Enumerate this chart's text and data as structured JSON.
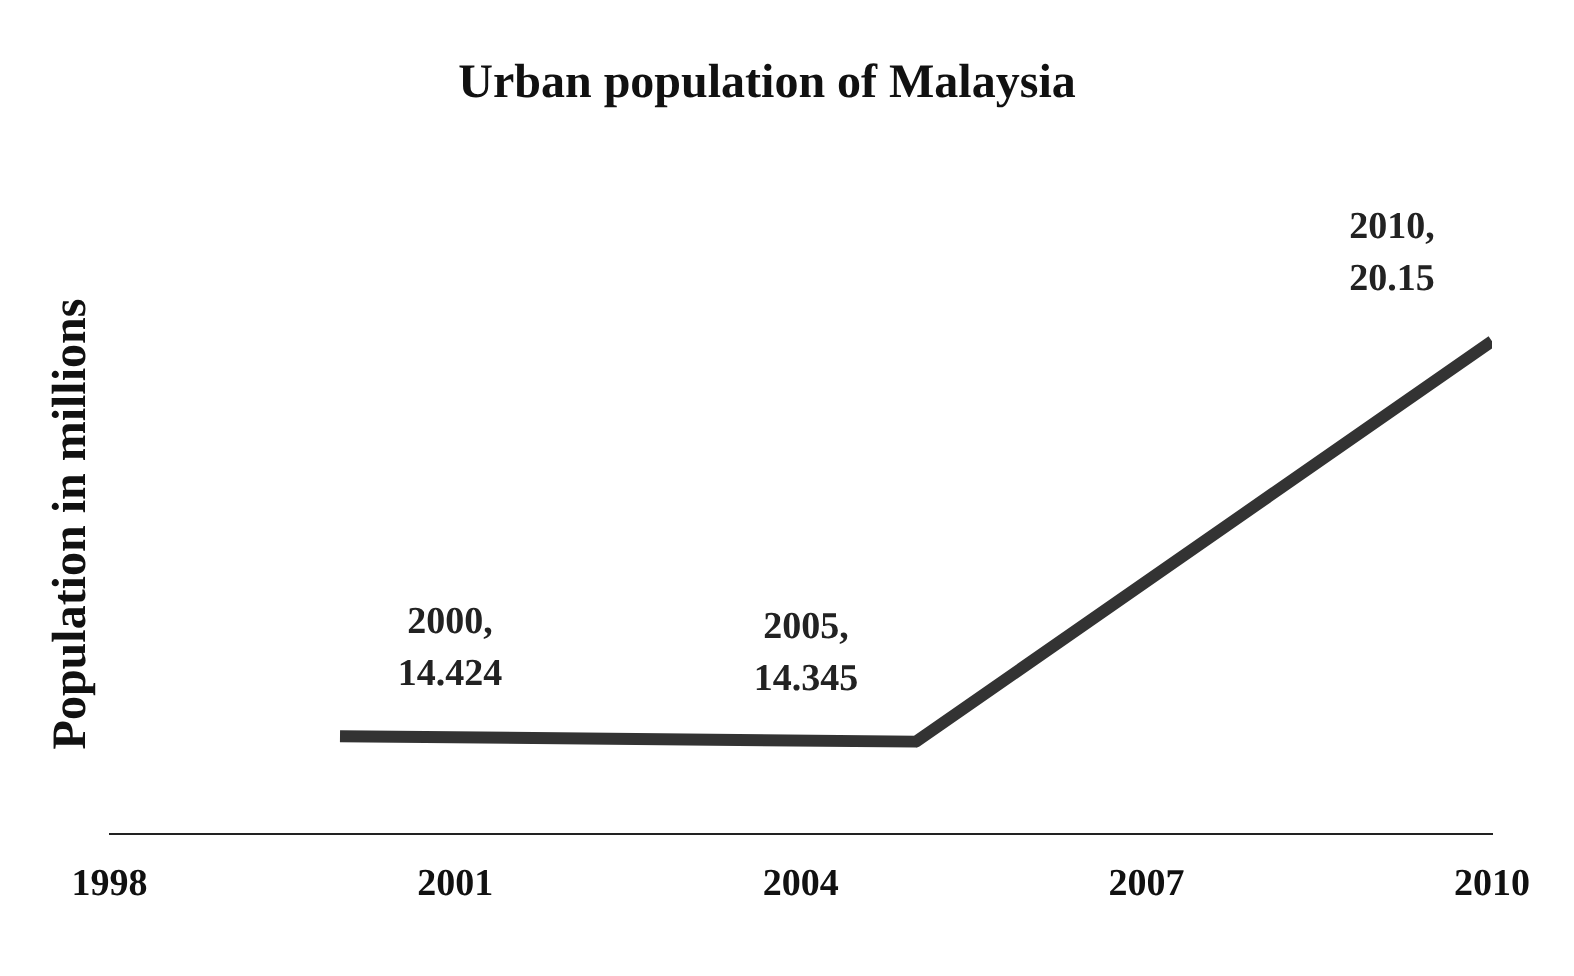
{
  "chart_data": {
    "type": "line",
    "title": "Urban population of Malaysia",
    "ylabel": "Population in millions",
    "x": [
      2000,
      2005,
      2010
    ],
    "series": [
      {
        "color": "#333333",
        "values": [
          14.424,
          14.345,
          20.15
        ],
        "value_labels": [
          "2000, 14.424",
          "2005, 14.345",
          "2010, 20.15"
        ]
      }
    ],
    "xlim": [
      1998,
      2010
    ],
    "xticks": [
      1998,
      2001,
      2004,
      2007,
      2010
    ],
    "grid": false,
    "legend": false,
    "marker": "none",
    "line_style": "solid",
    "tick_labels": "x"
  }
}
